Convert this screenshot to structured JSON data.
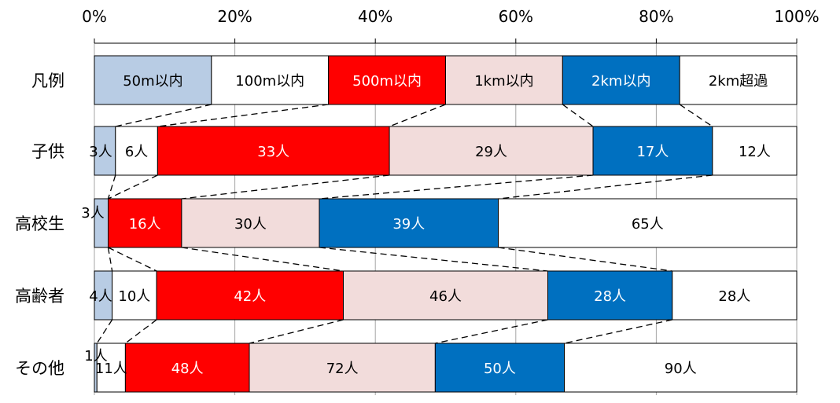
{
  "chart_data": {
    "type": "bar",
    "orientation": "horizontal",
    "stacked": true,
    "normalized": true,
    "xlim": [
      0,
      100
    ],
    "x_ticks": [
      "0%",
      "20%",
      "40%",
      "60%",
      "80%",
      "100%"
    ],
    "grid": "vertical",
    "legend": "凡例",
    "categories": [
      "子供",
      "高校生",
      "高齢者",
      "その他"
    ],
    "series": [
      {
        "name": "50m以内",
        "color": "#b8cce4",
        "text_color": "#000000",
        "values": [
          3,
          3,
          4,
          1
        ],
        "labels": [
          "3人",
          "3人",
          "4人",
          "1人"
        ]
      },
      {
        "name": "100m以内",
        "color": "#ffffff",
        "text_color": "#000000",
        "values": [
          6,
          0,
          10,
          11
        ],
        "labels": [
          "6人",
          "",
          "10人",
          "11人"
        ]
      },
      {
        "name": "500m以内",
        "color": "#ff0000",
        "text_color": "#ffffff",
        "values": [
          33,
          16,
          42,
          48
        ],
        "labels": [
          "33人",
          "16人",
          "42人",
          "48人"
        ]
      },
      {
        "name": "1km以内",
        "color": "#f2dcdb",
        "text_color": "#000000",
        "values": [
          29,
          30,
          46,
          72
        ],
        "labels": [
          "29人",
          "30人",
          "46人",
          "72人"
        ]
      },
      {
        "name": "2km以内",
        "color": "#0070c0",
        "text_color": "#ffffff",
        "values": [
          17,
          39,
          28,
          50
        ],
        "labels": [
          "17人",
          "39人",
          "28人",
          "50人"
        ]
      },
      {
        "name": "2km超過",
        "color": "#ffffff",
        "text_color": "#000000",
        "values": [
          12,
          65,
          28,
          90
        ],
        "labels": [
          "12人",
          "65人",
          "28人",
          "90人"
        ]
      }
    ]
  }
}
